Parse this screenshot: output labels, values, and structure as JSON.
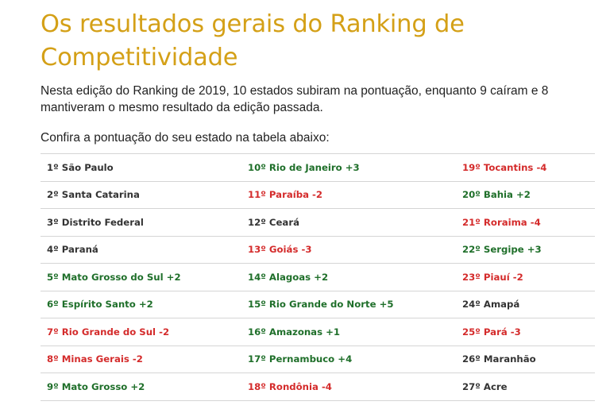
{
  "title": "Os resultados gerais do Ranking de Competitividade",
  "intro": "Nesta edição do Ranking de 2019, 10 estados subiram na pontuação, enquanto 9 caíram e 8 mantiveram o mesmo resultado da edição passada.",
  "confira": "Confira a pontuação do seu estado na tabela abaixo:",
  "colors": {
    "title": "#d4a017",
    "up": "#1f6f2a",
    "down": "#d42b2b",
    "same": "#333333"
  },
  "ranking": {
    "rows": [
      [
        {
          "text": "1º São Paulo",
          "status": "same"
        },
        {
          "text": "10º Rio de Janeiro +3",
          "status": "up"
        },
        {
          "text": "19º Tocantins -4",
          "status": "down"
        }
      ],
      [
        {
          "text": "2º Santa Catarina",
          "status": "same"
        },
        {
          "text": "11º Paraíba -2",
          "status": "down"
        },
        {
          "text": "20º Bahia +2",
          "status": "up"
        }
      ],
      [
        {
          "text": "3º Distrito Federal",
          "status": "same"
        },
        {
          "text": "12º Ceará",
          "status": "same"
        },
        {
          "text": "21º Roraima -4",
          "status": "down"
        }
      ],
      [
        {
          "text": "4º Paraná",
          "status": "same"
        },
        {
          "text": "13º Goiás -3",
          "status": "down"
        },
        {
          "text": "22º Sergipe +3",
          "status": "up"
        }
      ],
      [
        {
          "text": "5º Mato Grosso do Sul +2",
          "status": "up"
        },
        {
          "text": "14º Alagoas +2",
          "status": "up"
        },
        {
          "text": "23º Piauí -2",
          "status": "down"
        }
      ],
      [
        {
          "text": "6º Espírito Santo +2",
          "status": "up"
        },
        {
          "text": "15º Rio Grande do Norte +5",
          "status": "up"
        },
        {
          "text": "24º Amapá",
          "status": "same"
        }
      ],
      [
        {
          "text": "7º Rio Grande do Sul -2",
          "status": "down"
        },
        {
          "text": "16º Amazonas +1",
          "status": "up"
        },
        {
          "text": "25º Pará -3",
          "status": "down"
        }
      ],
      [
        {
          "text": "8º Minas Gerais -2",
          "status": "down"
        },
        {
          "text": "17º Pernambuco +4",
          "status": "up"
        },
        {
          "text": "26º Maranhão",
          "status": "same"
        }
      ],
      [
        {
          "text": "9º Mato Grosso +2",
          "status": "up"
        },
        {
          "text": "18º Rondônia -4",
          "status": "down"
        },
        {
          "text": "27º Acre",
          "status": "same"
        }
      ]
    ]
  }
}
